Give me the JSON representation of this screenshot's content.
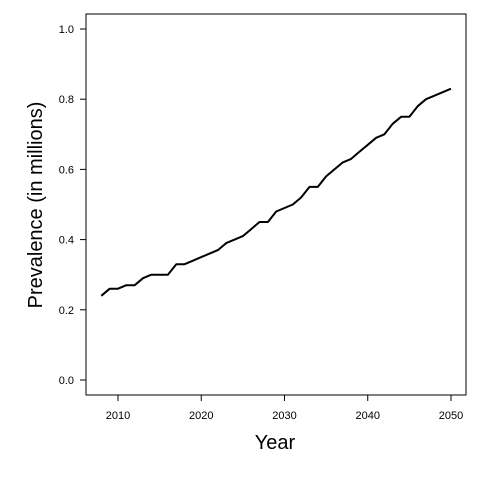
{
  "chart_data": {
    "type": "line",
    "title": "",
    "xlabel": "Year",
    "ylabel": "Prevalence (in millions)",
    "xlim": [
      2008,
      2050
    ],
    "ylim": [
      0.0,
      1.0
    ],
    "x_ticks": [
      2010,
      2020,
      2030,
      2040,
      2050
    ],
    "y_ticks": [
      0.0,
      0.2,
      0.4,
      0.6,
      0.8,
      1.0
    ],
    "x_tick_labels": [
      "2010",
      "2020",
      "2030",
      "2040",
      "2050"
    ],
    "y_tick_labels": [
      "0.0",
      "0.2",
      "0.4",
      "0.6",
      "0.8",
      "1.0"
    ],
    "grid": false,
    "legend": "none",
    "line_color": "#000000",
    "x": [
      2008,
      2009,
      2010,
      2011,
      2012,
      2013,
      2014,
      2015,
      2016,
      2017,
      2018,
      2019,
      2020,
      2021,
      2022,
      2023,
      2024,
      2025,
      2026,
      2027,
      2028,
      2029,
      2030,
      2031,
      2032,
      2033,
      2034,
      2035,
      2036,
      2037,
      2038,
      2039,
      2040,
      2041,
      2042,
      2043,
      2044,
      2045,
      2046,
      2047,
      2048,
      2049,
      2050
    ],
    "y": [
      0.24,
      0.26,
      0.26,
      0.27,
      0.27,
      0.29,
      0.3,
      0.3,
      0.3,
      0.33,
      0.33,
      0.34,
      0.35,
      0.36,
      0.37,
      0.39,
      0.4,
      0.41,
      0.43,
      0.45,
      0.45,
      0.48,
      0.49,
      0.5,
      0.52,
      0.55,
      0.55,
      0.58,
      0.6,
      0.62,
      0.63,
      0.65,
      0.67,
      0.69,
      0.7,
      0.73,
      0.75,
      0.75,
      0.78,
      0.8,
      0.81,
      0.82,
      0.83
    ]
  }
}
